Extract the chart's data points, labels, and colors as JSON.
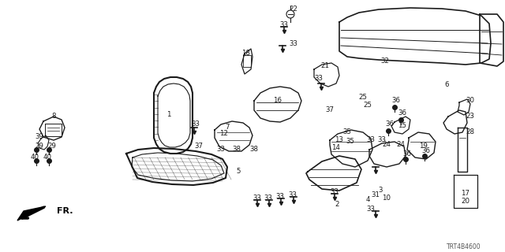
{
  "bg": "#ffffff",
  "lc": "#1a1a1a",
  "diagram_code": "TRT4B4600",
  "figsize": [
    6.4,
    3.2
  ],
  "dpi": 100
}
